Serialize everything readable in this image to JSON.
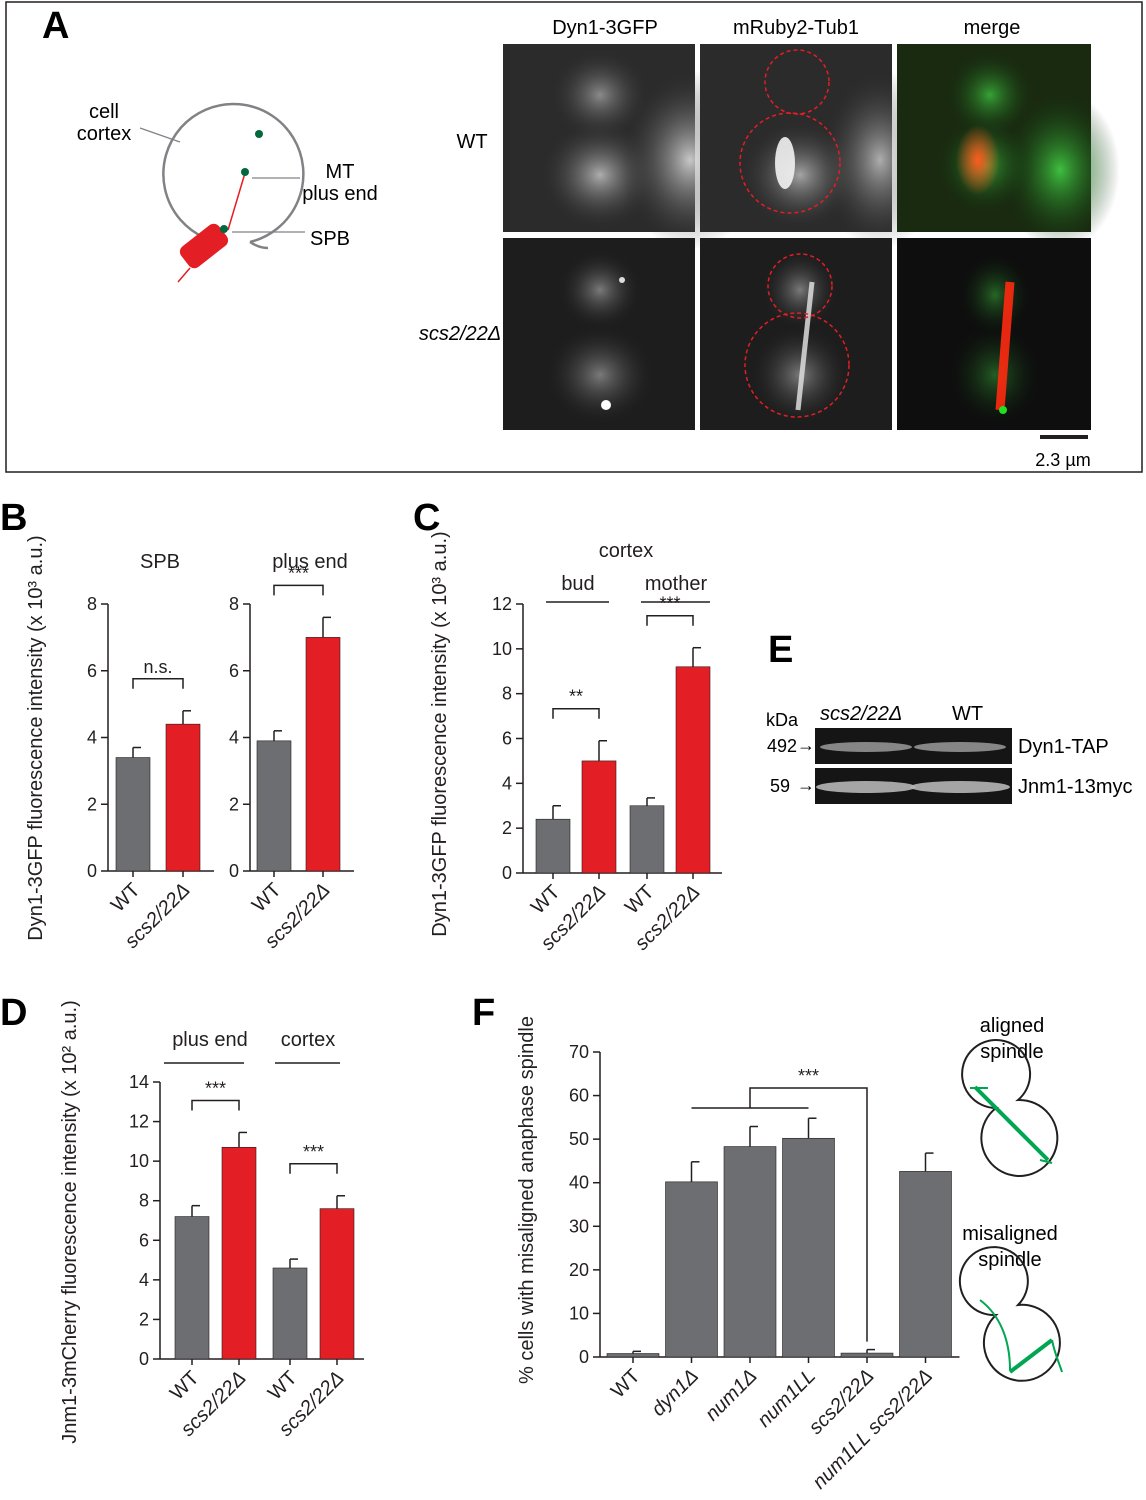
{
  "colors": {
    "wt_bar": "#6d6e71",
    "mutant_bar": "#e31e24",
    "axis": "#231f20",
    "microscopy_bg": "#1a1a1a"
  },
  "panel_A": {
    "letter": "A",
    "schematic_labels": {
      "cortex1": "cell",
      "cortex2": "cortex",
      "mt1": "MT",
      "mt2": "plus end",
      "spb": "SPB"
    },
    "columns": [
      "Dyn1-3GFP",
      "mRuby2-Tub1",
      "merge"
    ],
    "rows": [
      "WT",
      "scs2/22Δ"
    ],
    "scale_bar": "2.3 µm"
  },
  "panel_B": {
    "letter": "B"
  },
  "panel_C": {
    "letter": "C"
  },
  "panel_D": {
    "letter": "D"
  },
  "panel_E": {
    "letter": "E",
    "kda_label": "kDa",
    "lane_labels": [
      "scs2/22Δ",
      "WT"
    ],
    "markers": [
      {
        "mass": "492",
        "protein": "Dyn1-TAP"
      },
      {
        "mass": "59",
        "protein": "Jnm1-13myc"
      }
    ]
  },
  "panel_F": {
    "letter": "F",
    "schematic_labels": {
      "aligned1": "aligned",
      "aligned2": "spindle",
      "mis1": "misaligned",
      "mis2": "spindle"
    }
  },
  "chart_data": [
    {
      "id": "B-SPB",
      "type": "bar",
      "title": "SPB",
      "ylabel": "Dyn1-3GFP fluorescence intensity (x 10³ a.u.)",
      "categories": [
        "WT",
        "scs2/22Δ"
      ],
      "values": [
        3.4,
        4.4
      ],
      "errors": [
        0.3,
        0.4
      ],
      "ylim": [
        0,
        8
      ],
      "yticks": [
        0,
        2,
        4,
        6,
        8
      ],
      "annotations": [
        {
          "text": "n.s.",
          "between": [
            0,
            1
          ]
        }
      ]
    },
    {
      "id": "B-plus-end",
      "type": "bar",
      "title": "plus end",
      "categories": [
        "WT",
        "scs2/22Δ"
      ],
      "values": [
        3.9,
        7.0
      ],
      "errors": [
        0.3,
        0.6
      ],
      "ylim": [
        0,
        8
      ],
      "yticks": [
        0,
        2,
        4,
        6,
        8
      ],
      "annotations": [
        {
          "text": "***",
          "between": [
            0,
            1
          ]
        }
      ]
    },
    {
      "id": "C",
      "type": "bar",
      "title": "cortex",
      "group_labels": [
        "bud",
        "mother"
      ],
      "ylabel": "Dyn1-3GFP fluorescence intensity (x 10³ a.u.)",
      "categories": [
        "WT",
        "scs2/22Δ",
        "WT",
        "scs2/22Δ"
      ],
      "values": [
        2.4,
        5.0,
        3.0,
        9.2
      ],
      "errors": [
        0.6,
        0.9,
        0.35,
        0.85
      ],
      "ylim": [
        0,
        12
      ],
      "yticks": [
        0,
        2,
        4,
        6,
        8,
        10,
        12
      ],
      "annotations": [
        {
          "text": "**",
          "between": [
            0,
            1
          ]
        },
        {
          "text": "***",
          "between": [
            2,
            3
          ]
        }
      ]
    },
    {
      "id": "D",
      "type": "bar",
      "group_labels": [
        "plus end",
        "cortex"
      ],
      "ylabel": "Jnm1-3mCherry fluorescence intensity (x 10² a.u.)",
      "categories": [
        "WT",
        "scs2/22Δ",
        "WT",
        "scs2/22Δ"
      ],
      "values": [
        7.2,
        10.7,
        4.6,
        7.6
      ],
      "errors": [
        0.55,
        0.75,
        0.45,
        0.65
      ],
      "ylim": [
        0,
        14
      ],
      "yticks": [
        0,
        2,
        4,
        6,
        8,
        10,
        12,
        14
      ],
      "annotations": [
        {
          "text": "***",
          "between": [
            0,
            1
          ]
        },
        {
          "text": "***",
          "between": [
            2,
            3
          ]
        }
      ]
    },
    {
      "id": "F",
      "type": "bar",
      "ylabel": "% cells with misaligned anaphase spindle",
      "categories": [
        "WT",
        "dyn1Δ",
        "num1Δ",
        "num1LL",
        "scs2/22Δ",
        "num1LL scs2/22Δ"
      ],
      "values": [
        0.8,
        40.2,
        48.3,
        50.2,
        0.9,
        42.6
      ],
      "errors": [
        0.5,
        4.6,
        4.6,
        4.6,
        0.8,
        4.2
      ],
      "ylim": [
        0,
        70
      ],
      "yticks": [
        0,
        10,
        20,
        30,
        40,
        50,
        60,
        70
      ],
      "annotations": [
        {
          "text": "***",
          "between": [
            [
              1,
              2,
              3
            ],
            4
          ]
        }
      ]
    }
  ]
}
